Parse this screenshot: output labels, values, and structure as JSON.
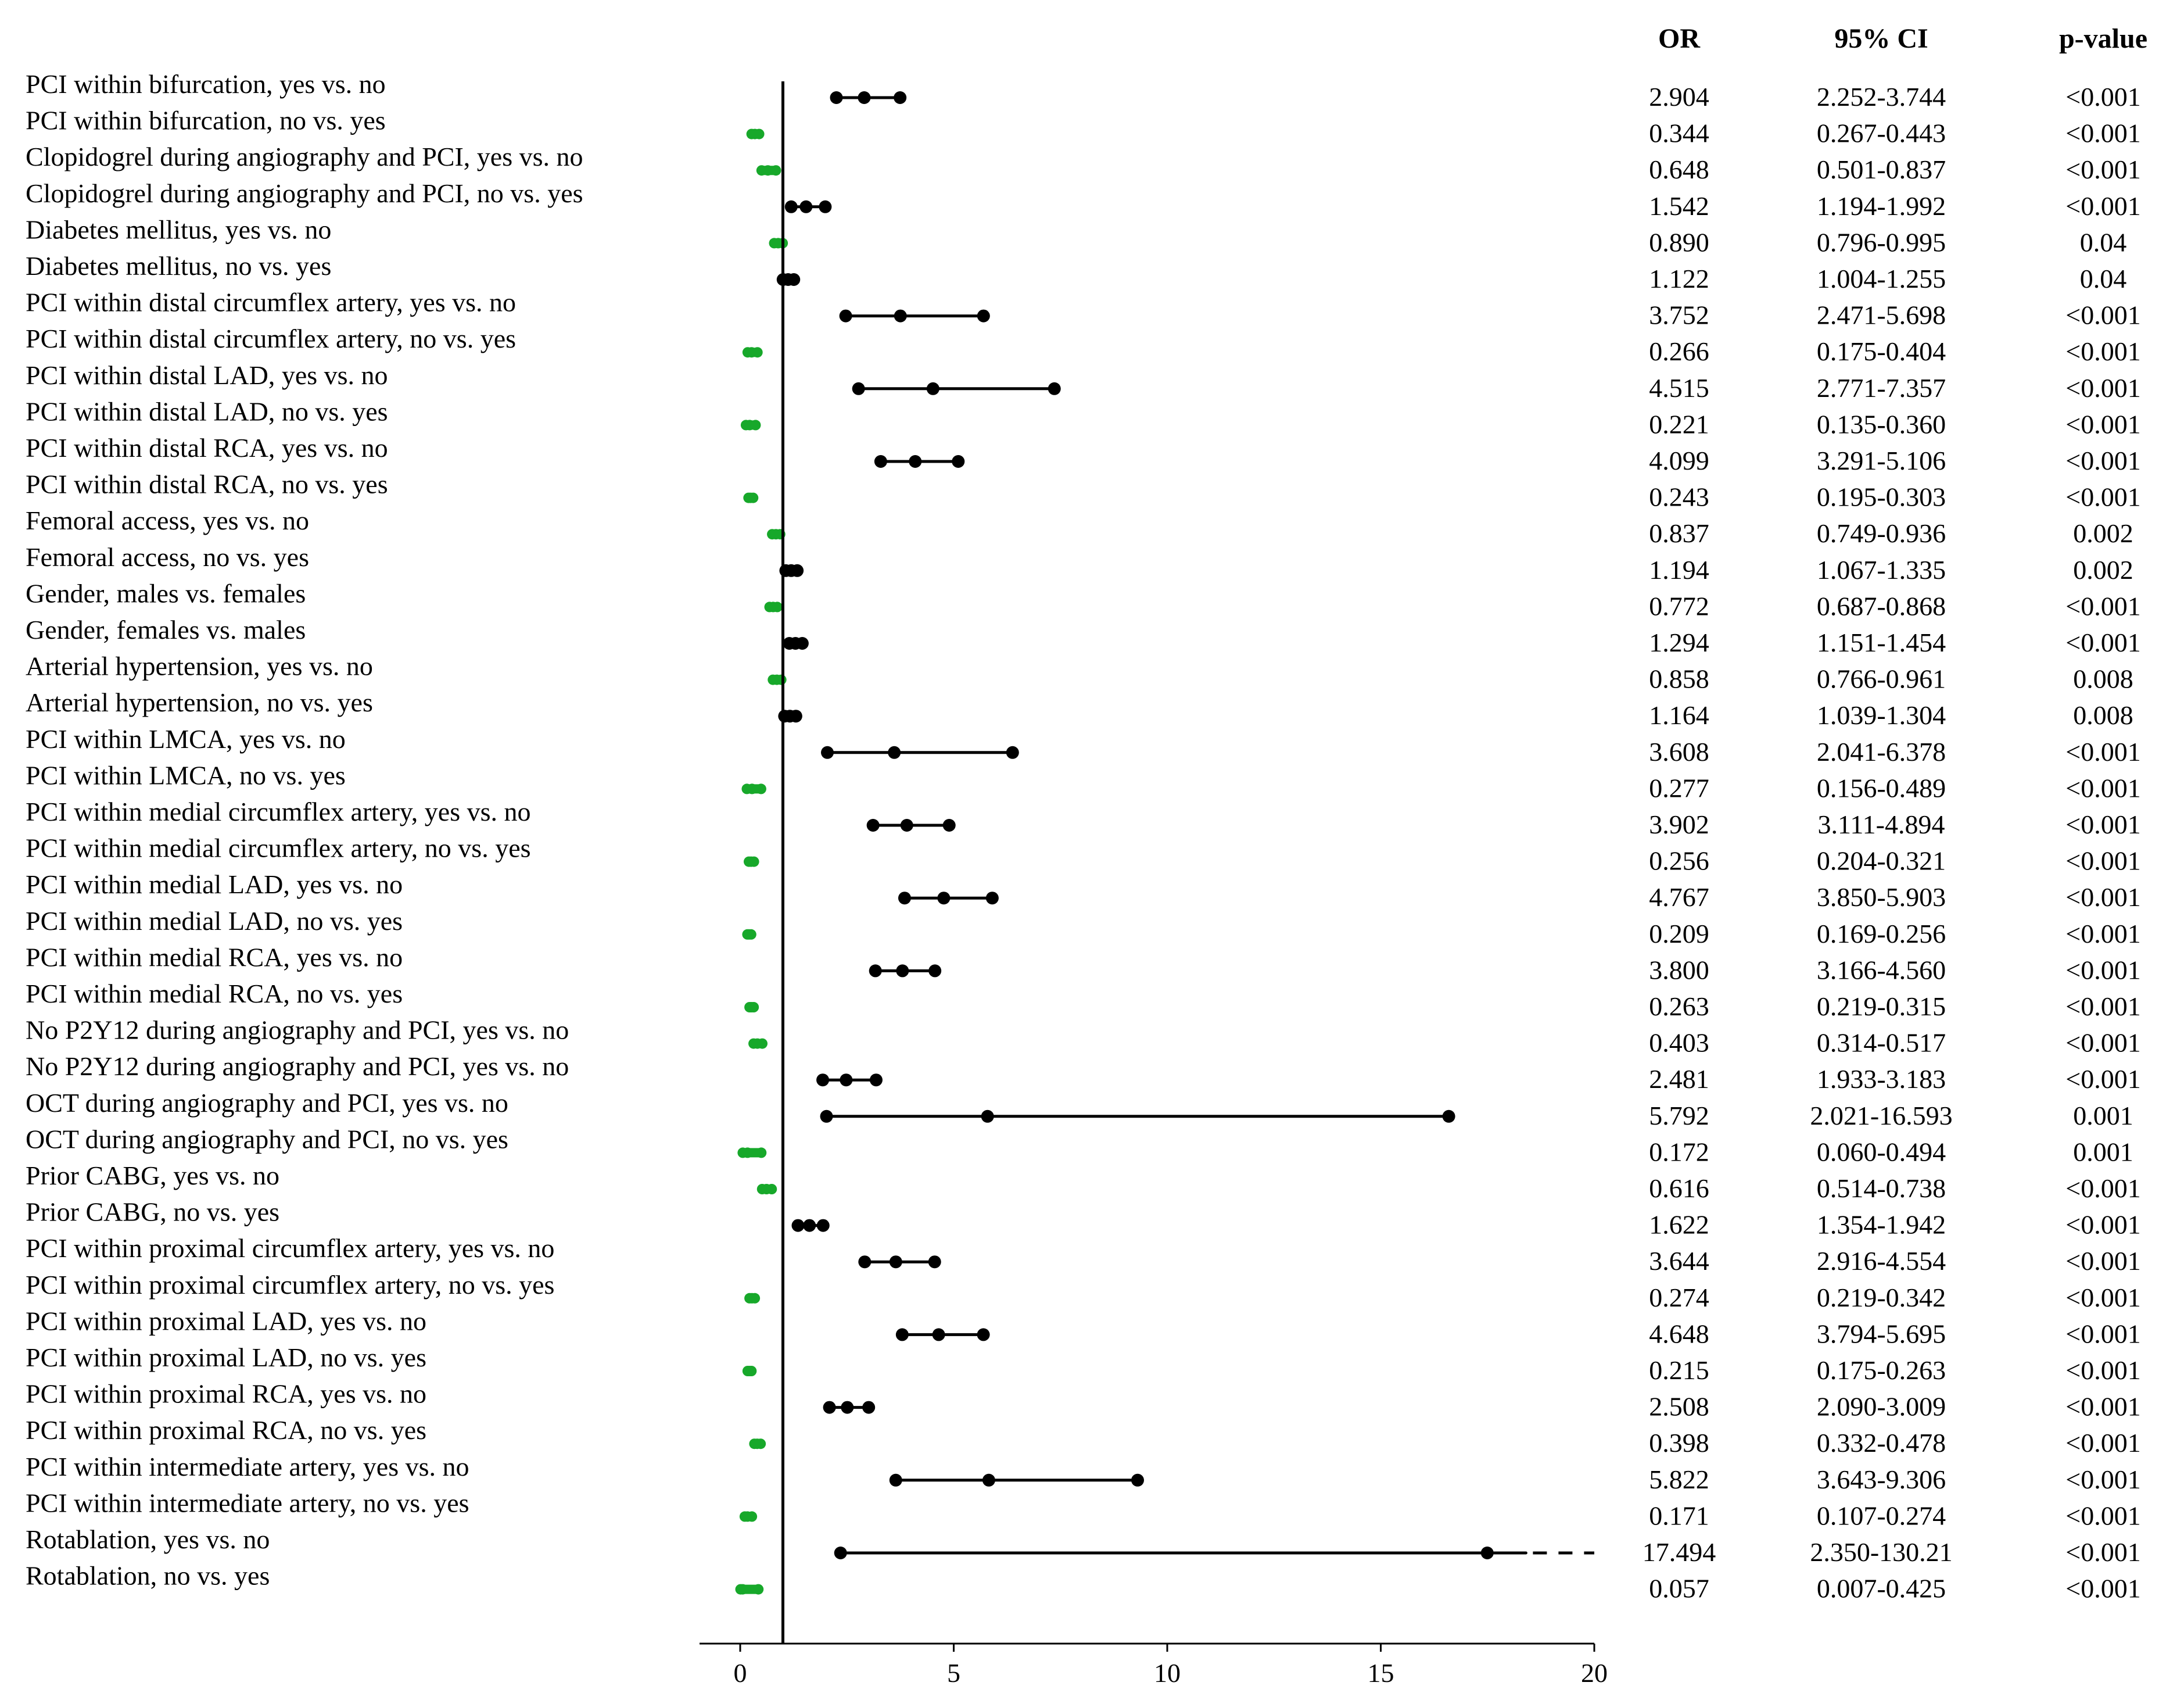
{
  "colors": {
    "above_one": "#000000",
    "below_one": "#17a82a",
    "axis": "#000000"
  },
  "chart_data": {
    "type": "forest",
    "title": "",
    "xlabel": "",
    "ylabel": "",
    "xlim": [
      0,
      20
    ],
    "xticks": [
      "0",
      "5",
      "10",
      "15",
      "20"
    ],
    "reference_line": 1,
    "columns": {
      "or": "OR",
      "ci": "95% CI",
      "p": "p-value"
    },
    "rows": [
      {
        "label": "PCI within bifurcation, yes vs. no",
        "or": 2.904,
        "lo": 2.252,
        "hi": 3.744,
        "or_text": "2.904",
        "ci_text": "2.252-3.744",
        "p_text": "<0.001"
      },
      {
        "label": "PCI within bifurcation, no vs. yes",
        "or": 0.344,
        "lo": 0.267,
        "hi": 0.443,
        "or_text": "0.344",
        "ci_text": "0.267-0.443",
        "p_text": "<0.001"
      },
      {
        "label": "Clopidogrel during angiography and PCI, yes vs. no",
        "or": 0.648,
        "lo": 0.501,
        "hi": 0.837,
        "or_text": "0.648",
        "ci_text": "0.501-0.837",
        "p_text": "<0.001"
      },
      {
        "label": "Clopidogrel during angiography and PCI, no vs. yes",
        "or": 1.542,
        "lo": 1.194,
        "hi": 1.992,
        "or_text": "1.542",
        "ci_text": "1.194-1.992",
        "p_text": "<0.001"
      },
      {
        "label": "Diabetes mellitus, yes vs. no",
        "or": 0.89,
        "lo": 0.796,
        "hi": 0.995,
        "or_text": "0.890",
        "ci_text": "0.796-0.995",
        "p_text": "0.04"
      },
      {
        "label": "Diabetes mellitus, no vs. yes",
        "or": 1.122,
        "lo": 1.004,
        "hi": 1.255,
        "or_text": "1.122",
        "ci_text": "1.004-1.255",
        "p_text": "0.04"
      },
      {
        "label": "PCI within distal circumflex artery, yes vs. no",
        "or": 3.752,
        "lo": 2.471,
        "hi": 5.698,
        "or_text": "3.752",
        "ci_text": "2.471-5.698",
        "p_text": "<0.001"
      },
      {
        "label": "PCI within distal circumflex artery, no vs. yes",
        "or": 0.266,
        "lo": 0.175,
        "hi": 0.404,
        "or_text": "0.266",
        "ci_text": "0.175-0.404",
        "p_text": "<0.001"
      },
      {
        "label": "PCI within distal LAD, yes vs. no",
        "or": 4.515,
        "lo": 2.771,
        "hi": 7.357,
        "or_text": "4.515",
        "ci_text": "2.771-7.357",
        "p_text": "<0.001"
      },
      {
        "label": "PCI within distal LAD, no vs. yes",
        "or": 0.221,
        "lo": 0.135,
        "hi": 0.36,
        "or_text": "0.221",
        "ci_text": "0.135-0.360",
        "p_text": "<0.001"
      },
      {
        "label": "PCI within distal RCA, yes vs. no",
        "or": 4.099,
        "lo": 3.291,
        "hi": 5.106,
        "or_text": "4.099",
        "ci_text": "3.291-5.106",
        "p_text": "<0.001"
      },
      {
        "label": "PCI within distal RCA, no vs. yes",
        "or": 0.243,
        "lo": 0.195,
        "hi": 0.303,
        "or_text": "0.243",
        "ci_text": "0.195-0.303",
        "p_text": "<0.001"
      },
      {
        "label": "Femoral access, yes vs. no",
        "or": 0.837,
        "lo": 0.749,
        "hi": 0.936,
        "or_text": "0.837",
        "ci_text": "0.749-0.936",
        "p_text": "0.002"
      },
      {
        "label": "Femoral access, no vs. yes",
        "or": 1.194,
        "lo": 1.067,
        "hi": 1.335,
        "or_text": "1.194",
        "ci_text": "1.067-1.335",
        "p_text": "0.002"
      },
      {
        "label": "Gender, males vs. females",
        "or": 0.772,
        "lo": 0.687,
        "hi": 0.868,
        "or_text": "0.772",
        "ci_text": "0.687-0.868",
        "p_text": "<0.001"
      },
      {
        "label": "Gender, females vs. males",
        "or": 1.294,
        "lo": 1.151,
        "hi": 1.454,
        "or_text": "1.294",
        "ci_text": "1.151-1.454",
        "p_text": "<0.001"
      },
      {
        "label": "Arterial hypertension, yes vs. no",
        "or": 0.858,
        "lo": 0.766,
        "hi": 0.961,
        "or_text": "0.858",
        "ci_text": "0.766-0.961",
        "p_text": "0.008"
      },
      {
        "label": "Arterial hypertension, no vs. yes",
        "or": 1.164,
        "lo": 1.039,
        "hi": 1.304,
        "or_text": "1.164",
        "ci_text": "1.039-1.304",
        "p_text": "0.008"
      },
      {
        "label": "PCI within LMCA, yes vs. no",
        "or": 3.608,
        "lo": 2.041,
        "hi": 6.378,
        "or_text": "3.608",
        "ci_text": "2.041-6.378",
        "p_text": "<0.001"
      },
      {
        "label": "PCI within LMCA, no vs. yes",
        "or": 0.277,
        "lo": 0.156,
        "hi": 0.489,
        "or_text": "0.277",
        "ci_text": "0.156-0.489",
        "p_text": "<0.001"
      },
      {
        "label": "PCI within medial circumflex artery, yes vs. no",
        "or": 3.902,
        "lo": 3.111,
        "hi": 4.894,
        "or_text": "3.902",
        "ci_text": "3.111-4.894",
        "p_text": "<0.001"
      },
      {
        "label": "PCI within medial circumflex artery, no vs. yes",
        "or": 0.256,
        "lo": 0.204,
        "hi": 0.321,
        "or_text": "0.256",
        "ci_text": "0.204-0.321",
        "p_text": "<0.001"
      },
      {
        "label": "PCI within medial LAD, yes vs. no",
        "or": 4.767,
        "lo": 3.85,
        "hi": 5.903,
        "or_text": "4.767",
        "ci_text": "3.850-5.903",
        "p_text": "<0.001"
      },
      {
        "label": "PCI within medial LAD, no vs. yes",
        "or": 0.209,
        "lo": 0.169,
        "hi": 0.256,
        "or_text": "0.209",
        "ci_text": "0.169-0.256",
        "p_text": "<0.001"
      },
      {
        "label": "PCI within medial RCA, yes vs. no",
        "or": 3.8,
        "lo": 3.166,
        "hi": 4.56,
        "or_text": "3.800",
        "ci_text": "3.166-4.560",
        "p_text": "<0.001"
      },
      {
        "label": "PCI within medial RCA, no vs. yes",
        "or": 0.263,
        "lo": 0.219,
        "hi": 0.315,
        "or_text": "0.263",
        "ci_text": "0.219-0.315",
        "p_text": "<0.001"
      },
      {
        "label": "No P2Y12 during angiography and PCI, yes vs. no",
        "or": 0.403,
        "lo": 0.314,
        "hi": 0.517,
        "or_text": "0.403",
        "ci_text": "0.314-0.517",
        "p_text": "<0.001"
      },
      {
        "label": "No P2Y12 during angiography and PCI, yes vs. no",
        "or": 2.481,
        "lo": 1.933,
        "hi": 3.183,
        "or_text": "2.481",
        "ci_text": "1.933-3.183",
        "p_text": "<0.001"
      },
      {
        "label": "OCT during angiography and PCI, yes vs. no",
        "or": 5.792,
        "lo": 2.021,
        "hi": 16.593,
        "or_text": "5.792",
        "ci_text": "2.021-16.593",
        "p_text": "0.001"
      },
      {
        "label": "OCT during angiography and PCI, no vs. yes",
        "or": 0.172,
        "lo": 0.06,
        "hi": 0.494,
        "or_text": "0.172",
        "ci_text": "0.060-0.494",
        "p_text": "0.001"
      },
      {
        "label": "Prior CABG, yes vs. no",
        "or": 0.616,
        "lo": 0.514,
        "hi": 0.738,
        "or_text": "0.616",
        "ci_text": "0.514-0.738",
        "p_text": "<0.001"
      },
      {
        "label": "Prior CABG, no vs. yes",
        "or": 1.622,
        "lo": 1.354,
        "hi": 1.942,
        "or_text": "1.622",
        "ci_text": "1.354-1.942",
        "p_text": "<0.001"
      },
      {
        "label": "PCI within proximal circumflex artery, yes vs. no",
        "or": 3.644,
        "lo": 2.916,
        "hi": 4.554,
        "or_text": "3.644",
        "ci_text": "2.916-4.554",
        "p_text": "<0.001"
      },
      {
        "label": "PCI within proximal circumflex artery, no vs. yes",
        "or": 0.274,
        "lo": 0.219,
        "hi": 0.342,
        "or_text": "0.274",
        "ci_text": "0.219-0.342",
        "p_text": "<0.001"
      },
      {
        "label": "PCI within proximal LAD, yes vs. no",
        "or": 4.648,
        "lo": 3.794,
        "hi": 5.695,
        "or_text": "4.648",
        "ci_text": "3.794-5.695",
        "p_text": "<0.001"
      },
      {
        "label": "PCI within proximal LAD, no vs. yes",
        "or": 0.215,
        "lo": 0.175,
        "hi": 0.263,
        "or_text": "0.215",
        "ci_text": "0.175-0.263",
        "p_text": "<0.001"
      },
      {
        "label": "PCI within proximal RCA, yes vs. no",
        "or": 2.508,
        "lo": 2.09,
        "hi": 3.009,
        "or_text": "2.508",
        "ci_text": "2.090-3.009",
        "p_text": "<0.001"
      },
      {
        "label": "PCI within proximal RCA, no vs. yes",
        "or": 0.398,
        "lo": 0.332,
        "hi": 0.478,
        "or_text": "0.398",
        "ci_text": "0.332-0.478",
        "p_text": "<0.001"
      },
      {
        "label": "PCI within intermediate artery, yes vs. no",
        "or": 5.822,
        "lo": 3.643,
        "hi": 9.306,
        "or_text": "5.822",
        "ci_text": "3.643-9.306",
        "p_text": "<0.001"
      },
      {
        "label": "PCI within intermediate artery, no vs. yes",
        "or": 0.171,
        "lo": 0.107,
        "hi": 0.274,
        "or_text": "0.171",
        "ci_text": "0.107-0.274",
        "p_text": "<0.001"
      },
      {
        "label": "Rotablation, yes vs. no",
        "or": 17.494,
        "lo": 2.35,
        "hi": 130.21,
        "or_text": "17.494",
        "ci_text": "2.350-130.21",
        "p_text": "<0.001"
      },
      {
        "label": "Rotablation, no vs. yes",
        "or": 0.057,
        "lo": 0.007,
        "hi": 0.425,
        "or_text": "0.057",
        "ci_text": "0.007-0.425",
        "p_text": "<0.001"
      }
    ]
  }
}
